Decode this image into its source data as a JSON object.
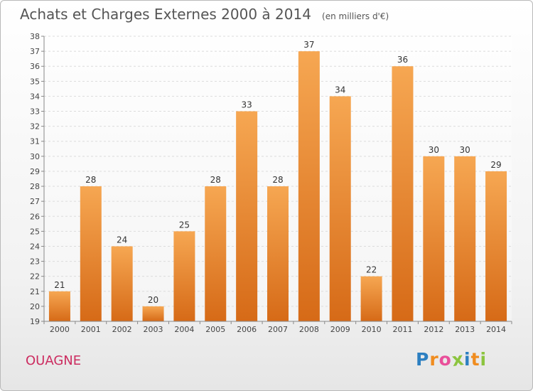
{
  "title": "Achats et Charges Externes 2000 à 2014",
  "subtitle": "(en milliers d'€)",
  "commune": "OUAGNE",
  "logo": {
    "letters": [
      "P",
      "r",
      "o",
      "x",
      "i",
      "t",
      "i"
    ],
    "colors": [
      "#2c7fc1",
      "#f08c1f",
      "#e94f9a",
      "#8cc43f",
      "#2c7fc1",
      "#f08c1f",
      "#8cc43f"
    ]
  },
  "colors": {
    "bar_top": "#f6a752",
    "bar_bottom": "#d66a17",
    "commune": "#cc2c60"
  },
  "chart_data": {
    "type": "bar",
    "categories": [
      "2000",
      "2001",
      "2002",
      "2003",
      "2004",
      "2005",
      "2006",
      "2007",
      "2008",
      "2009",
      "2010",
      "2011",
      "2012",
      "2013",
      "2014"
    ],
    "values": [
      21,
      28,
      24,
      20,
      25,
      28,
      33,
      28,
      37,
      34,
      22,
      36,
      30,
      30,
      29
    ],
    "ylim": [
      19,
      38
    ],
    "yticks": [
      19,
      20,
      21,
      22,
      23,
      24,
      25,
      26,
      27,
      28,
      29,
      30,
      31,
      32,
      33,
      34,
      35,
      36,
      37,
      38
    ],
    "grid": true
  }
}
